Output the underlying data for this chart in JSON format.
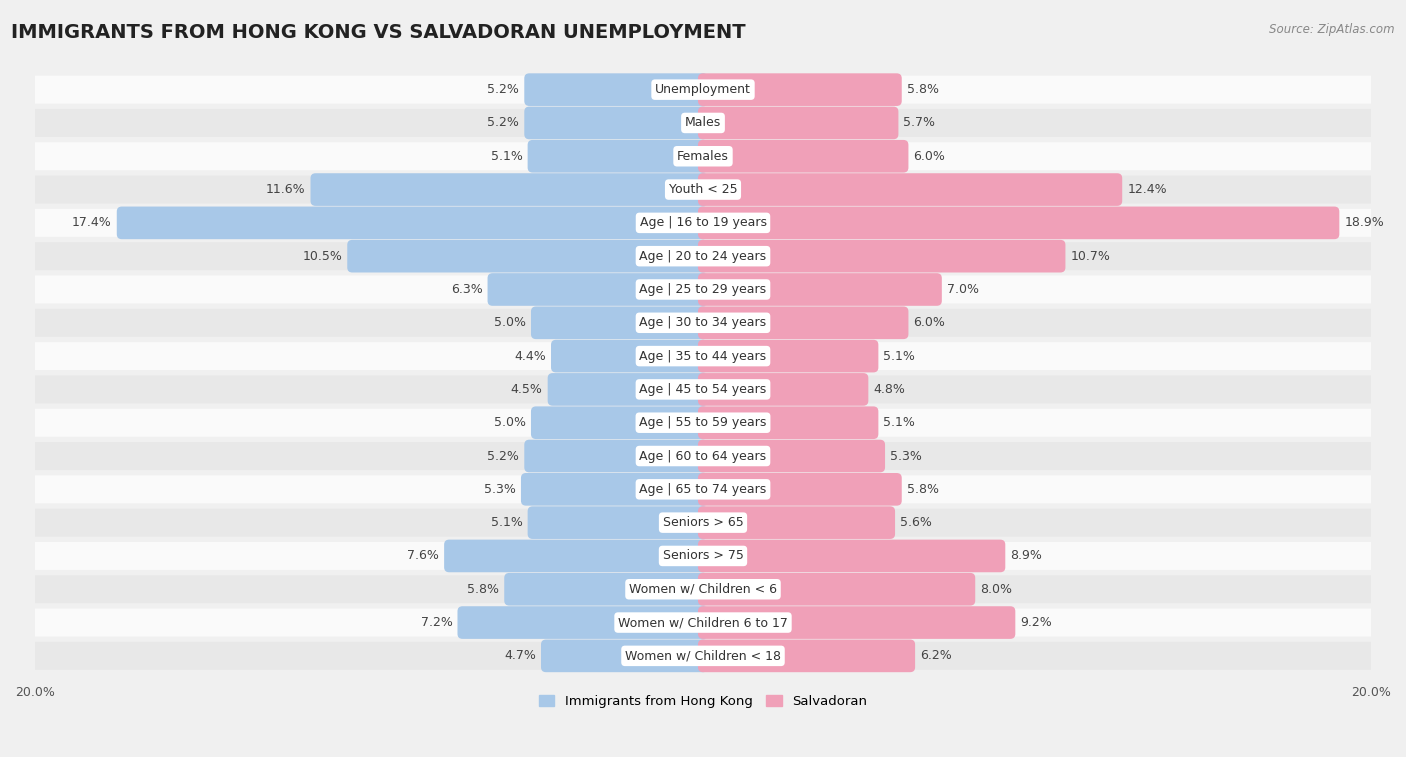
{
  "title": "IMMIGRANTS FROM HONG KONG VS SALVADORAN UNEMPLOYMENT",
  "source": "Source: ZipAtlas.com",
  "categories": [
    "Unemployment",
    "Males",
    "Females",
    "Youth < 25",
    "Age | 16 to 19 years",
    "Age | 20 to 24 years",
    "Age | 25 to 29 years",
    "Age | 30 to 34 years",
    "Age | 35 to 44 years",
    "Age | 45 to 54 years",
    "Age | 55 to 59 years",
    "Age | 60 to 64 years",
    "Age | 65 to 74 years",
    "Seniors > 65",
    "Seniors > 75",
    "Women w/ Children < 6",
    "Women w/ Children 6 to 17",
    "Women w/ Children < 18"
  ],
  "left_values": [
    5.2,
    5.2,
    5.1,
    11.6,
    17.4,
    10.5,
    6.3,
    5.0,
    4.4,
    4.5,
    5.0,
    5.2,
    5.3,
    5.1,
    7.6,
    5.8,
    7.2,
    4.7
  ],
  "right_values": [
    5.8,
    5.7,
    6.0,
    12.4,
    18.9,
    10.7,
    7.0,
    6.0,
    5.1,
    4.8,
    5.1,
    5.3,
    5.8,
    5.6,
    8.9,
    8.0,
    9.2,
    6.2
  ],
  "left_color": "#a8c8e8",
  "right_color": "#f0a0b8",
  "bg_color": "#f0f0f0",
  "row_bg_colors": [
    "#fafafa",
    "#e8e8e8"
  ],
  "axis_max": 20.0,
  "legend_left": "Immigrants from Hong Kong",
  "legend_right": "Salvadoran",
  "title_fontsize": 14,
  "label_fontsize": 9,
  "value_fontsize": 9
}
